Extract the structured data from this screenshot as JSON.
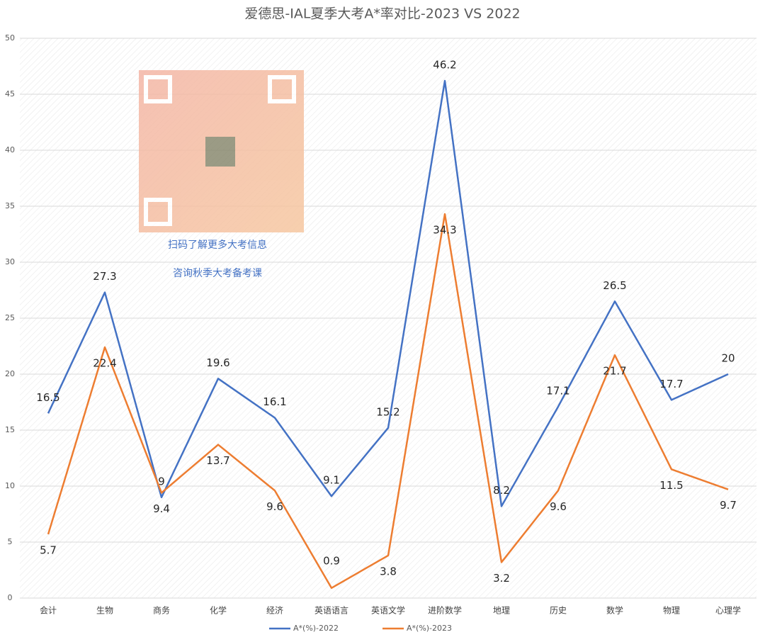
{
  "chart_data": {
    "type": "line",
    "title": "爱德思-IAL夏季大考A*率对比-2023 VS 2022",
    "categories": [
      "会计",
      "生物",
      "商务",
      "化学",
      "经济",
      "英语语言",
      "英语文学",
      "进阶数学",
      "地理",
      "历史",
      "数学",
      "物理",
      "心理学"
    ],
    "series": [
      {
        "name": "A*(%)-2022",
        "color": "#4472c4",
        "values": [
          16.5,
          27.3,
          9,
          19.6,
          16.1,
          9.1,
          15.2,
          46.2,
          8.2,
          17.1,
          26.5,
          17.7,
          20
        ]
      },
      {
        "name": "A*(%)-2023",
        "color": "#ed7d31",
        "values": [
          5.7,
          22.4,
          9.4,
          13.7,
          9.6,
          0.9,
          3.8,
          34.3,
          3.2,
          9.6,
          21.7,
          11.5,
          9.7
        ]
      }
    ],
    "ylim": [
      0,
      50
    ],
    "yticks": [
      0,
      5,
      10,
      15,
      20,
      25,
      30,
      35,
      40,
      45,
      50
    ],
    "grid": true,
    "legend": "bottom",
    "annotations": [
      "扫码了解更多大考信息",
      "咨询秋季大考备考课"
    ]
  }
}
